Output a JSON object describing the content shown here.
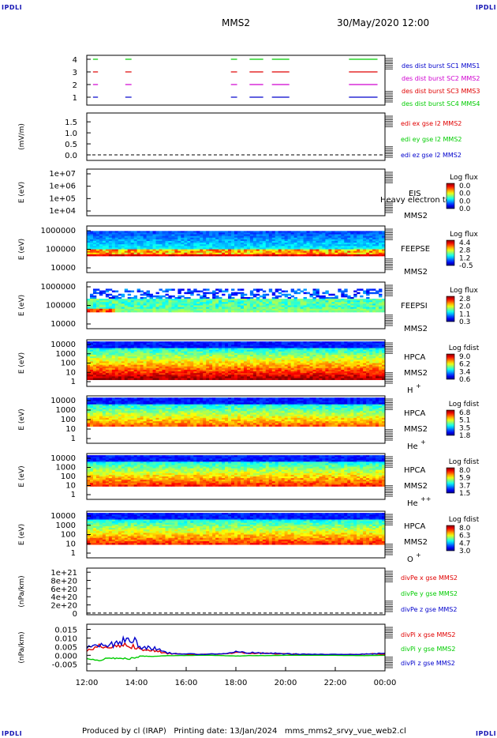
{
  "corners": {
    "top_left": "IPDLI",
    "top_right": "IPDLI",
    "bottom_left": "IPDLI",
    "bottom_right": "IPDLI"
  },
  "header": {
    "spacecraft": "MMS2",
    "datetime": "30/May/2020 12:00"
  },
  "footer": {
    "text": "Produced by cl (IRAP)   Printing date: 13/Jan/2024   mms_mms2_srvy_vue_web2.cl"
  },
  "colors": {
    "red": "#e00000",
    "green": "#00cc00",
    "blue": "#0000cc",
    "magenta": "#d000d0",
    "dark_blue": "#1515b4"
  },
  "chart_data": [
    {
      "type": "timeline",
      "panel": "burst",
      "yticks": [
        "1",
        "2",
        "3",
        "4"
      ],
      "legend": [
        {
          "text": "des dist burst SC1 MMS1",
          "color": "#0000cc"
        },
        {
          "text": "des dist burst SC2 MMS2",
          "color": "#d000d0"
        },
        {
          "text": "des dist burst SC3 MMS3",
          "color": "#e00000"
        },
        {
          "text": "des dist burst SC4 MMS4",
          "color": "#00cc00"
        }
      ],
      "burst_intervals_hours": [
        [
          12.25,
          12.45
        ],
        [
          13.55,
          13.8
        ],
        [
          17.8,
          18.05
        ],
        [
          18.55,
          19.1
        ],
        [
          19.45,
          20.15
        ],
        [
          22.55,
          23.7
        ]
      ]
    },
    {
      "type": "line",
      "panel": "edi",
      "ylabel": "(mV/m)",
      "yticks": [
        "0.0",
        "0.5",
        "1.0",
        "1.5"
      ],
      "ylim": [
        -0.25,
        1.9
      ],
      "dashed_zero": true,
      "legend": [
        {
          "text": "edi ex gse l2 MMS2",
          "color": "#e00000"
        },
        {
          "text": "edi ey gse l2 MMS2",
          "color": "#00cc00"
        },
        {
          "text": "edi ez gse l2 MMS2",
          "color": "#0000cc"
        }
      ]
    },
    {
      "type": "heatmap",
      "panel": "eis",
      "ylabel": "E (eV)",
      "yticks": [
        "1e+04",
        "1e+05",
        "1e+06",
        "1e+07"
      ],
      "labels": [
        "EIS",
        "MMS2"
      ],
      "overlay_text": "Heavy electron to",
      "colorbar": {
        "title": "Log flux",
        "ticks": [
          "0.0",
          "0.0",
          "0.0",
          "0.0"
        ]
      }
    },
    {
      "type": "heatmap",
      "panel": "feepse",
      "ylabel": "E (eV)",
      "yticks": [
        "10000",
        "100000",
        "1000000"
      ],
      "labels": [
        "FEEPSE",
        "MMS2"
      ],
      "colorbar": {
        "title": "Log flux",
        "ticks": [
          "4.4",
          "2.8",
          "1.2",
          "-0.5"
        ]
      }
    },
    {
      "type": "heatmap",
      "panel": "feepsi",
      "ylabel": "E (eV)",
      "yticks": [
        "10000",
        "100000",
        "1000000"
      ],
      "labels": [
        "FEEPSI",
        "MMS2"
      ],
      "colorbar": {
        "title": "Log flux",
        "ticks": [
          "2.8",
          "2.0",
          "1.1",
          "0.3"
        ]
      }
    },
    {
      "type": "heatmap",
      "panel": "hpca_h",
      "ylabel": "E (eV)",
      "yticks": [
        "1",
        "10",
        "100",
        "1000",
        "10000"
      ],
      "labels": [
        "HPCA",
        "MMS2"
      ],
      "species": "H",
      "species_sup": "+",
      "colorbar": {
        "title": "Log fdist",
        "ticks": [
          "9.0",
          "6.2",
          "3.4",
          "0.6"
        ]
      }
    },
    {
      "type": "heatmap",
      "panel": "hpca_he1",
      "ylabel": "E (eV)",
      "yticks": [
        "1",
        "10",
        "100",
        "1000",
        "10000"
      ],
      "labels": [
        "HPCA",
        "MMS2"
      ],
      "species": "He",
      "species_sup": "+",
      "colorbar": {
        "title": "Log fdist",
        "ticks": [
          "6.8",
          "5.1",
          "3.5",
          "1.8"
        ]
      }
    },
    {
      "type": "heatmap",
      "panel": "hpca_he2",
      "ylabel": "E (eV)",
      "yticks": [
        "1",
        "10",
        "100",
        "1000",
        "10000"
      ],
      "labels": [
        "HPCA",
        "MMS2"
      ],
      "species": "He",
      "species_sup": "++",
      "colorbar": {
        "title": "Log fdist",
        "ticks": [
          "8.0",
          "5.9",
          "3.7",
          "1.5"
        ]
      }
    },
    {
      "type": "heatmap",
      "panel": "hpca_o",
      "ylabel": "E (eV)",
      "yticks": [
        "1",
        "10",
        "100",
        "1000",
        "10000"
      ],
      "labels": [
        "HPCA",
        "MMS2"
      ],
      "species": "O",
      "species_sup": "+",
      "colorbar": {
        "title": "Log fdist",
        "ticks": [
          "8.0",
          "6.3",
          "4.7",
          "3.0"
        ]
      }
    },
    {
      "type": "line",
      "panel": "divpe",
      "ylabel": "(nPa/km)",
      "yticks": [
        "0",
        "2e+20",
        "4e+20",
        "6e+20",
        "8e+20",
        "1e+21"
      ],
      "ylim": [
        -4e+19,
        1.1e+21
      ],
      "dashed_zero": true,
      "legend": [
        {
          "text": "divPe x gse MMS2",
          "color": "#e00000"
        },
        {
          "text": "divPe y gse MMS2",
          "color": "#00cc00"
        },
        {
          "text": "divPe z gse MMS2",
          "color": "#0000cc"
        }
      ]
    },
    {
      "type": "line",
      "panel": "divpi",
      "ylabel": "(nPa/km)",
      "yticks": [
        "-0.005",
        "0.000",
        "0.005",
        "0.010",
        "0.015"
      ],
      "ylim": [
        -0.009,
        0.018
      ],
      "legend": [
        {
          "text": "divPi x gse MMS2",
          "color": "#e00000"
        },
        {
          "text": "divPi y gse MMS2",
          "color": "#00cc00"
        },
        {
          "text": "divPi z gse MMS2",
          "color": "#0000cc"
        }
      ],
      "series": [
        {
          "name": "divPi x gse MMS2",
          "color": "#e00000",
          "x": [
            12.0,
            12.5,
            13.0,
            13.4,
            13.8,
            14.2,
            14.6,
            15.0,
            15.5,
            16.0,
            16.5,
            17.0,
            17.5,
            18.0,
            18.5,
            19.0,
            19.5,
            20.0,
            20.5,
            21.0,
            21.5,
            22.0,
            22.5,
            23.0,
            23.5,
            24.0
          ],
          "y": [
            0.0025,
            0.005,
            0.0045,
            0.006,
            0.0055,
            0.0035,
            0.003,
            0.0015,
            0.0008,
            0.0005,
            0.0005,
            0.0007,
            0.0008,
            0.0015,
            0.0012,
            0.0012,
            0.001,
            0.0008,
            0.0006,
            0.0004,
            0.0004,
            0.0004,
            0.0005,
            0.0005,
            0.0008,
            0.0005
          ]
        },
        {
          "name": "divPi y gse MMS2",
          "color": "#00cc00",
          "x": [
            12.0,
            12.5,
            13.0,
            13.4,
            13.8,
            14.2,
            14.6,
            15.0,
            15.5,
            16.0,
            16.5,
            17.0,
            17.5,
            18.0,
            18.5,
            19.0,
            19.5,
            20.0,
            20.5,
            21.0,
            21.5,
            22.0,
            22.5,
            23.0,
            23.5,
            24.0
          ],
          "y": [
            -0.002,
            -0.0025,
            -0.0015,
            -0.002,
            -0.0018,
            -0.0005,
            -0.0006,
            -0.0003,
            -0.0002,
            -0.0001,
            0.0,
            0.0,
            -0.0002,
            -0.0004,
            -0.0002,
            -0.0002,
            -0.0001,
            0.0,
            0.0,
            0.0,
            0.0,
            0.0,
            -0.0001,
            -0.0002,
            -0.0001,
            0.0
          ]
        },
        {
          "name": "divPi z gse MMS2",
          "color": "#0000cc",
          "x": [
            12.0,
            12.5,
            13.0,
            13.4,
            13.8,
            14.2,
            14.6,
            15.0,
            15.5,
            16.0,
            16.5,
            17.0,
            17.5,
            18.0,
            18.5,
            19.0,
            19.5,
            20.0,
            20.5,
            21.0,
            21.5,
            22.0,
            22.5,
            23.0,
            23.5,
            24.0
          ],
          "y": [
            0.004,
            0.007,
            0.006,
            0.008,
            0.0095,
            0.005,
            0.0045,
            0.002,
            0.001,
            0.0008,
            0.0006,
            0.0007,
            0.0009,
            0.002,
            0.0015,
            0.0012,
            0.0011,
            0.0009,
            0.0007,
            0.0006,
            0.0005,
            0.0005,
            0.0006,
            0.0006,
            0.0009,
            0.0012
          ]
        }
      ]
    }
  ],
  "time_axis": {
    "ticks": [
      "12:00",
      "14:00",
      "16:00",
      "18:00",
      "20:00",
      "22:00",
      "00:00"
    ],
    "values_hours": [
      12,
      14,
      16,
      18,
      20,
      22,
      24
    ]
  }
}
